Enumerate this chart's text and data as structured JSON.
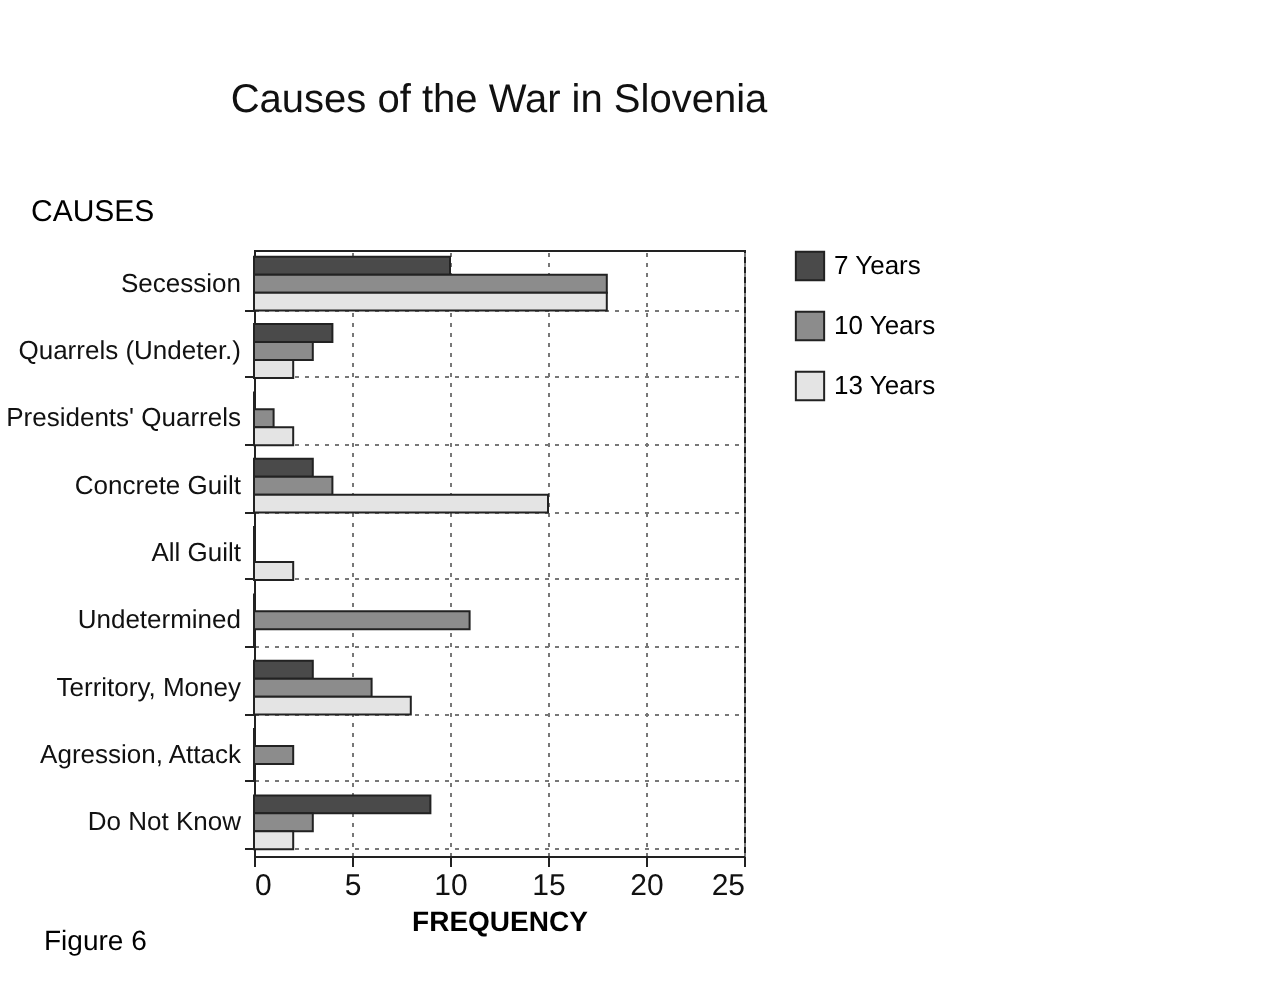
{
  "chart_data": {
    "type": "bar",
    "orientation": "horizontal",
    "title": "Causes of the War in Slovenia",
    "ylabel": "CAUSES",
    "xlabel": "FREQUENCY",
    "categories": [
      "Secession",
      "Quarrels (Undeter.)",
      "Presidents' Quarrels",
      "Concrete Guilt",
      "All Guilt",
      "Undetermined",
      "Territory, Money",
      "Agression, Attack",
      "Do Not Know"
    ],
    "series": [
      {
        "name": "7 Years",
        "color": "#4a4a4a",
        "values": [
          10,
          4,
          0,
          3,
          0,
          0,
          3,
          0,
          9
        ]
      },
      {
        "name": "10 Years",
        "color": "#8c8c8c",
        "values": [
          18,
          3,
          1,
          4,
          0,
          11,
          6,
          2,
          3
        ]
      },
      {
        "name": "13 Years",
        "color": "#e4e4e4",
        "values": [
          18,
          2,
          2,
          15,
          2,
          0,
          8,
          0,
          2
        ]
      }
    ],
    "xlim": [
      0,
      25
    ],
    "xticks": [
      0,
      5,
      10,
      15,
      20,
      25
    ],
    "grid": true,
    "legend": "right",
    "annotations": [
      "Figure 6"
    ]
  }
}
